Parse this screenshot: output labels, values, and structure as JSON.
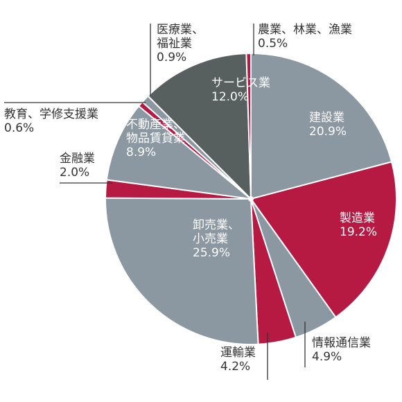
{
  "chart_data": {
    "type": "pie",
    "start_angle_deg": -90,
    "direction": "clockwise",
    "slices": [
      {
        "label": [
          "建設業"
        ],
        "value": 20.9,
        "value_text": "20.9%",
        "color": "#8b97a1"
      },
      {
        "label": [
          "製造業"
        ],
        "value": 19.2,
        "value_text": "19.2%",
        "color": "#b61a43"
      },
      {
        "label": [
          "情報通信業"
        ],
        "value": 4.9,
        "value_text": "4.9%",
        "color": "#8b97a1"
      },
      {
        "label": [
          "運輸業"
        ],
        "value": 4.2,
        "value_text": "4.2%",
        "color": "#b61a43"
      },
      {
        "label": [
          "卸売業、",
          "小売業"
        ],
        "value": 25.9,
        "value_text": "25.9%",
        "color": "#8b97a1"
      },
      {
        "label": [
          "金融業"
        ],
        "value": 2.0,
        "value_text": "2.0%",
        "color": "#b61a43"
      },
      {
        "label": [
          "不動産業、",
          "物品賃貸業"
        ],
        "value": 8.9,
        "value_text": "8.9%",
        "color": "#8b97a1"
      },
      {
        "label": [
          "教育、学修支援業"
        ],
        "value": 0.6,
        "value_text": "0.6%",
        "color": "#b61a43"
      },
      {
        "label": [
          "医療業、",
          "福祉業"
        ],
        "value": 0.9,
        "value_text": "0.9%",
        "color": "#8b97a1"
      },
      {
        "label": [
          "サービス業"
        ],
        "value": 12.0,
        "value_text": "12.0%",
        "color": "#58605f"
      },
      {
        "label": [
          "農業、林業、漁業"
        ],
        "value": 0.5,
        "value_text": "0.5%",
        "color": "#b61a43"
      }
    ]
  }
}
